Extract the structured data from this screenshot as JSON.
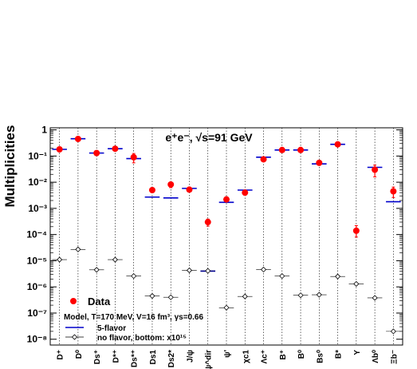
{
  "chart_data": {
    "type": "scatter",
    "ylabel": "Multiplicities",
    "yscale": "log",
    "ylim": [
      6e-09,
      1.2
    ],
    "grid": "vertical dotted lines at each particle",
    "legend_position": "bottom-left",
    "annotation": "e⁺e⁻, √s=91 GeV",
    "legend": {
      "data": "Data",
      "model": "Model, T=170 MeV, V=16 fm³, γs=0.66",
      "five_flavor": "5-flavor",
      "no_flavor": "no flavor, bottom: x10¹⁵"
    },
    "y_ticks": [
      "10⁻⁸",
      "10⁻⁷",
      "10⁻⁶",
      "10⁻⁵",
      "10⁻⁴",
      "10⁻³",
      "10⁻²",
      "10⁻¹",
      "1"
    ],
    "categories": [
      "D⁺",
      "D⁰",
      "Ds⁺",
      "D*⁺",
      "Ds*⁺",
      "Ds1",
      "Ds2*",
      "J/ψ",
      "J/ψ^dir",
      "ψ'",
      "χc1",
      "Λc⁺",
      "B⁺",
      "B⁰",
      "Bs⁰",
      "B*",
      "Υ",
      "Λb⁰",
      "Ξb⁻"
    ],
    "series": [
      {
        "name": "Data",
        "color": "#ff0000",
        "values": [
          0.18,
          0.45,
          0.13,
          0.19,
          0.09,
          0.005,
          0.0082,
          0.0052,
          0.0003,
          0.0022,
          0.004,
          0.075,
          0.17,
          0.17,
          0.055,
          0.28,
          0.00014,
          0.03,
          0.0045
        ],
        "err_low": [
          0.16,
          0.42,
          0.12,
          0.175,
          0.055,
          0.0044,
          0.0062,
          0.0045,
          0.00021,
          0.002,
          0.0032,
          0.067,
          0.155,
          0.155,
          0.05,
          0.26,
          8e-05,
          0.016,
          0.0026
        ],
        "err_high": [
          0.2,
          0.48,
          0.14,
          0.21,
          0.125,
          0.0056,
          0.01,
          0.0059,
          0.00039,
          0.0024,
          0.0048,
          0.083,
          0.185,
          0.185,
          0.06,
          0.3,
          0.00022,
          0.045,
          0.0065
        ]
      },
      {
        "name": "5-flavor",
        "color": "#0000cc",
        "values": [
          0.18,
          0.46,
          0.13,
          0.19,
          0.08,
          0.0027,
          0.0025,
          0.0058,
          4e-06,
          0.0017,
          0.005,
          0.09,
          0.17,
          0.17,
          0.05,
          0.28,
          null,
          0.037,
          0.0018
        ]
      },
      {
        "name": "no flavor, bottom: x10¹⁵",
        "color": "#000000",
        "values": [
          1.1e-05,
          2.7e-05,
          4.5e-06,
          1.1e-05,
          2.6e-06,
          4.5e-07,
          4e-07,
          4.3e-06,
          4.1e-06,
          1.6e-07,
          4.3e-07,
          4.6e-06,
          2.6e-06,
          4.8e-07,
          5e-07,
          2.5e-06,
          1.3e-06,
          3.8e-07,
          2e-08
        ]
      }
    ]
  }
}
